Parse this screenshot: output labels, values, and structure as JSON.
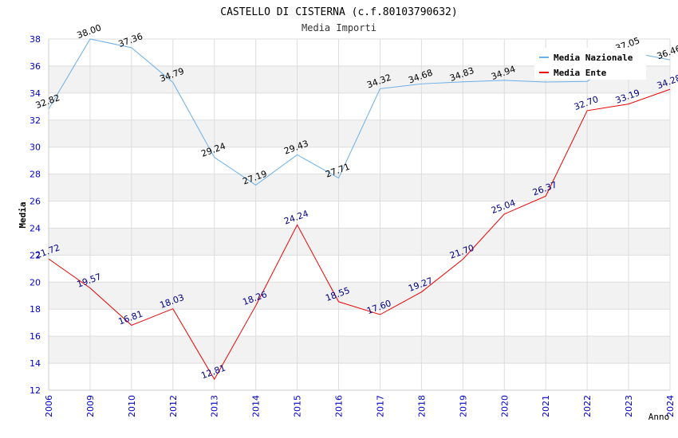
{
  "chart_data": {
    "type": "line",
    "title": "CASTELLO DI CISTERNA (c.f.80103790632)",
    "subtitle": "Media Importi",
    "xlabel": "Anno",
    "ylabel": "Media",
    "ylim": [
      12,
      38
    ],
    "yticks": [
      12,
      14,
      16,
      18,
      20,
      22,
      24,
      26,
      28,
      30,
      32,
      34,
      36,
      38
    ],
    "categories": [
      "2006",
      "2009",
      "2010",
      "2012",
      "2013",
      "2014",
      "2015",
      "2016",
      "2017",
      "2018",
      "2019",
      "2020",
      "2021",
      "2022",
      "2023",
      "2024"
    ],
    "series": [
      {
        "name": "Media Nazionale",
        "color": "#6aaee8",
        "label_color": "#000000",
        "values": [
          32.82,
          38.0,
          37.36,
          34.79,
          29.24,
          27.19,
          29.43,
          27.71,
          34.32,
          34.68,
          34.83,
          34.94,
          34.82,
          34.86,
          37.05,
          36.46
        ],
        "labels": [
          "32.82",
          "38.00",
          "37.36",
          "34.79",
          "29.24",
          "27.19",
          "29.43",
          "27.71",
          "34.32",
          "34.68",
          "34.83",
          "34.94",
          "",
          "",
          "37.05",
          "36.46"
        ]
      },
      {
        "name": "Media Ente",
        "color": "#ee0000",
        "label_color": "#000088",
        "values": [
          21.72,
          19.57,
          16.81,
          18.03,
          12.81,
          18.26,
          24.24,
          18.55,
          17.6,
          19.27,
          21.7,
          25.04,
          26.37,
          32.7,
          33.19,
          34.28
        ],
        "labels": [
          "21.72",
          "19.57",
          "16.81",
          "18.03",
          "12.81",
          "18.26",
          "24.24",
          "18.55",
          "17.60",
          "19.27",
          "21.70",
          "25.04",
          "26.37",
          "32.70",
          "33.19",
          "34.28"
        ]
      }
    ],
    "legend_position": "top-right",
    "grid": true
  }
}
